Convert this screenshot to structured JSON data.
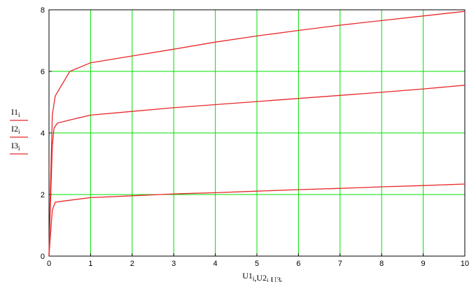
{
  "chart_data": {
    "type": "line",
    "xlim": [
      0,
      10
    ],
    "ylim": [
      0,
      8
    ],
    "x_ticks": [
      0,
      1,
      2,
      3,
      4,
      5,
      6,
      7,
      8,
      9,
      10
    ],
    "y_ticks": [
      0,
      2,
      4,
      6,
      8
    ],
    "grid": true,
    "grid_color": "#00e000",
    "line_color": "#e8282a",
    "xlabel_parts": [
      {
        "main": "U1",
        "sub": "i"
      },
      {
        "main": ",U2",
        "sub": "i"
      },
      {
        "main": ",U3",
        "sub": "i"
      }
    ],
    "legend": [
      {
        "main": "I1",
        "sub": "i"
      },
      {
        "main": "I2",
        "sub": "i"
      },
      {
        "main": "I3",
        "sub": "i"
      }
    ],
    "series": [
      {
        "x": [
          0,
          0.03,
          0.08,
          0.15,
          0.5,
          1,
          2,
          3,
          4,
          5,
          6,
          7,
          8,
          9,
          10
        ],
        "y": [
          0,
          2.0,
          4.6,
          5.2,
          6.0,
          6.28,
          6.5,
          6.72,
          6.95,
          7.15,
          7.33,
          7.5,
          7.65,
          7.8,
          7.95
        ]
      },
      {
        "x": [
          0,
          0.03,
          0.08,
          0.12,
          0.2,
          0.5,
          1,
          2,
          3,
          4,
          5,
          6,
          7,
          8,
          9,
          10
        ],
        "y": [
          0,
          1.5,
          3.6,
          4.15,
          4.32,
          4.42,
          4.58,
          4.7,
          4.82,
          4.92,
          5.02,
          5.12,
          5.22,
          5.32,
          5.43,
          5.55
        ]
      },
      {
        "x": [
          0,
          0.03,
          0.08,
          0.15,
          0.3,
          1,
          2,
          3,
          4,
          5,
          6,
          7,
          8,
          9,
          10
        ],
        "y": [
          0,
          0.6,
          1.5,
          1.75,
          1.78,
          1.9,
          1.96,
          2.02,
          2.06,
          2.11,
          2.16,
          2.2,
          2.25,
          2.29,
          2.34
        ]
      }
    ]
  }
}
